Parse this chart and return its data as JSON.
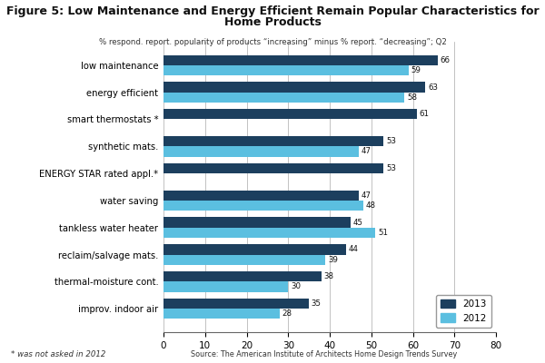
{
  "title_line1": "Figure 5: Low Maintenance and Energy Efficient Remain Popular Characteristics for",
  "title_line2": "Home Products",
  "subtitle": "% respond. report. popularity of products “increasing” minus % report. “decreasing”; Q2",
  "categories": [
    "improv. indoor air",
    "thermal-moisture cont.",
    "reclaim/salvage mats.",
    "tankless water heater",
    "water saving",
    "ENERGY STAR rated appl.*",
    "synthetic mats.",
    "smart thermostats *",
    "energy efficient",
    "low maintenance"
  ],
  "values_2013": [
    35,
    38,
    44,
    45,
    47,
    53,
    53,
    61,
    63,
    66
  ],
  "values_2012": [
    28,
    30,
    39,
    51,
    48,
    null,
    47,
    null,
    58,
    59
  ],
  "color_2013": "#1c3f5e",
  "color_2012": "#5bbfe0",
  "xlim": [
    0,
    80
  ],
  "xticks": [
    0,
    10,
    20,
    30,
    40,
    50,
    60,
    70,
    80
  ],
  "footnote": "* was not asked in 2012",
  "source": "Source: The American Institute of Architects Home Design Trends Survey",
  "bg_color": "#ffffff"
}
